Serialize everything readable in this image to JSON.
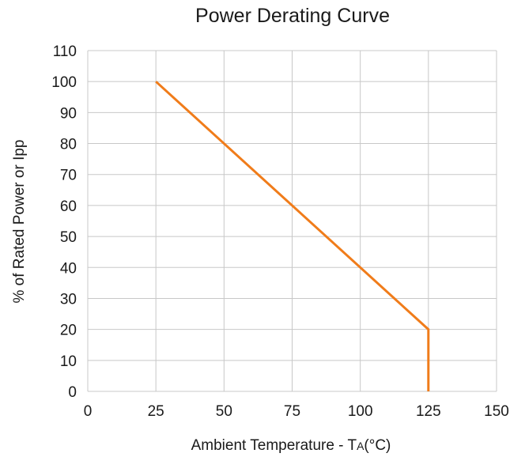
{
  "chart_data": {
    "type": "line",
    "title": "Power Derating Curve",
    "xlabel": "Ambient Temperature - T",
    "xlabel_subscript": "A",
    "xlabel_unit": "(°C)",
    "ylabel": "% of Rated Power or Ipp",
    "xlim": [
      0,
      150
    ],
    "ylim": [
      0,
      110
    ],
    "x_ticks": [
      0,
      25,
      50,
      75,
      100,
      125,
      150
    ],
    "y_ticks": [
      0,
      10,
      20,
      30,
      40,
      50,
      60,
      70,
      80,
      90,
      100,
      110
    ],
    "grid": true,
    "series": [
      {
        "color": "#f07c1a",
        "x": [
          25,
          125,
          125
        ],
        "y": [
          100,
          20,
          0
        ]
      }
    ]
  },
  "colors": {
    "grid": "#c8c8c8",
    "text": "#1a1a1a"
  }
}
